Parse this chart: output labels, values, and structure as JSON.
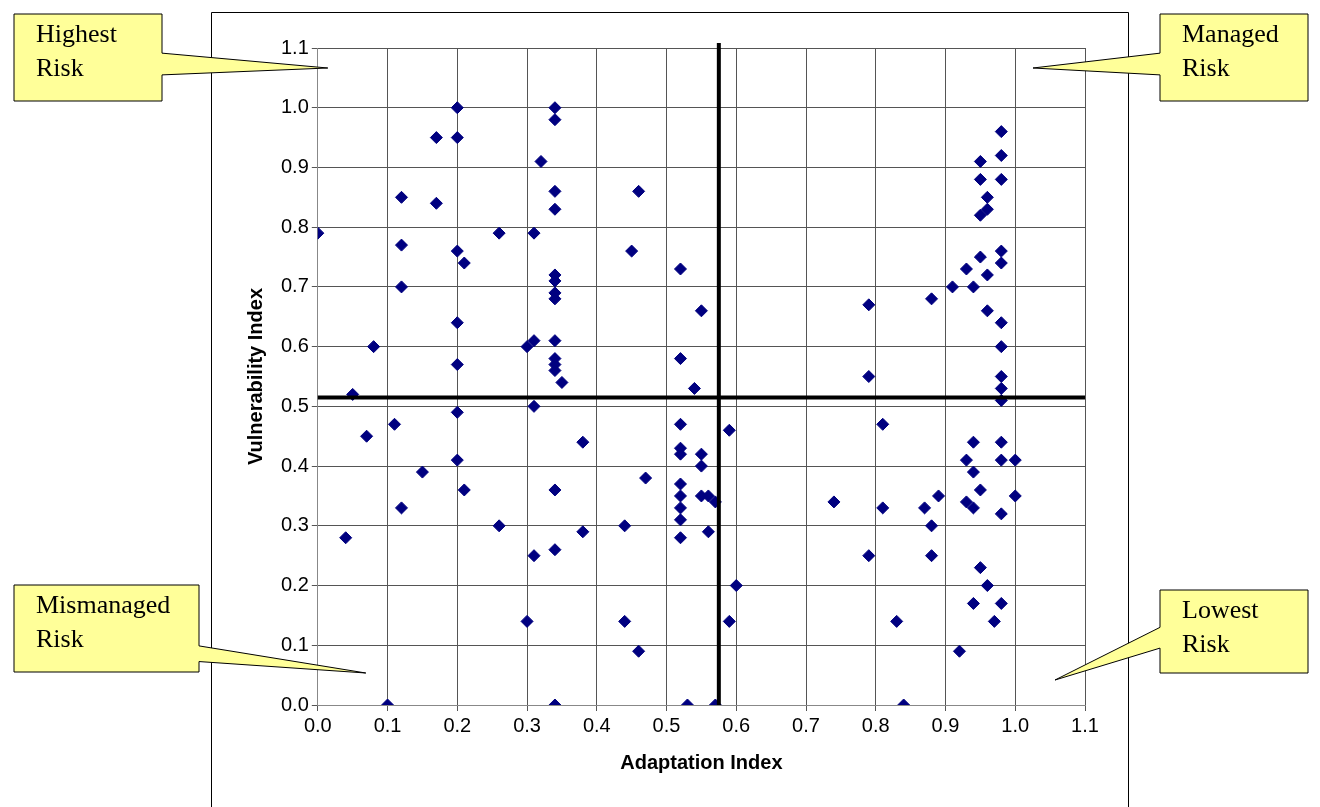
{
  "chart_data": {
    "type": "scatter",
    "xlabel": "Adaptation Index",
    "ylabel": "Vulnerability Index",
    "marker": "diamond",
    "grid": true,
    "legend": false,
    "xlim": [
      0,
      1.1
    ],
    "ylim": [
      0,
      1.1
    ],
    "xticks": [
      {
        "value": 0,
        "label": "0.0"
      },
      {
        "value": 0.1,
        "label": "0.1"
      },
      {
        "value": 0.2,
        "label": "0.2"
      },
      {
        "value": 0.3,
        "label": "0.3"
      },
      {
        "value": 0.4,
        "label": "0.4"
      },
      {
        "value": 0.5,
        "label": "0.5"
      },
      {
        "value": 0.6,
        "label": "0.6"
      },
      {
        "value": 0.7,
        "label": "0.7"
      },
      {
        "value": 0.8,
        "label": "0.8"
      },
      {
        "value": 0.9,
        "label": "0.9"
      },
      {
        "value": 1,
        "label": "1.0"
      },
      {
        "value": 1.1,
        "label": "1.1"
      }
    ],
    "yticks": [
      {
        "value": 0,
        "label": "0.0"
      },
      {
        "value": 0.1,
        "label": "0.1"
      },
      {
        "value": 0.2,
        "label": "0.2"
      },
      {
        "value": 0.3,
        "label": "0.3"
      },
      {
        "value": 0.4,
        "label": "0.4"
      },
      {
        "value": 0.5,
        "label": "0.5"
      },
      {
        "value": 0.6,
        "label": "0.6"
      },
      {
        "value": 0.7,
        "label": "0.7"
      },
      {
        "value": 0.8,
        "label": "0.8"
      },
      {
        "value": 0.9,
        "label": "0.9"
      },
      {
        "value": 1,
        "label": "1.0"
      },
      {
        "value": 1.1,
        "label": "1.1"
      }
    ],
    "ref_lines": [
      {
        "axis": "y",
        "value": 0.515,
        "color": "#000000"
      },
      {
        "axis": "x",
        "value": 0.575,
        "color": "#000000"
      }
    ],
    "annotations": [
      "Highest Risk",
      "Managed Risk",
      "Mismanaged Risk",
      "Lowest Risk"
    ],
    "series": [
      {
        "color": "#000080",
        "x": [
          0.2,
          0.34,
          0.34,
          0.17,
          0.2,
          0.32,
          0.34,
          0.46,
          0.12,
          0.17,
          0.34,
          0.0,
          0.26,
          0.31,
          0.12,
          0.2,
          0.45,
          0.21,
          0.52,
          0.34,
          0.34,
          0.34,
          0.34,
          0.12,
          0.55,
          0.2,
          0.08,
          0.3,
          0.31,
          0.34,
          0.2,
          0.52,
          0.34,
          0.34,
          0.34,
          0.35,
          0.05,
          0.54,
          0.2,
          0.31,
          0.11,
          0.07,
          0.52,
          0.38,
          0.52,
          0.52,
          0.2,
          0.15,
          0.21,
          0.34,
          0.47,
          0.52,
          0.52,
          0.52,
          0.52,
          0.52,
          0.12,
          0.26,
          0.44,
          0.38,
          0.04,
          0.34,
          0.31,
          0.3,
          0.44,
          0.46,
          0.1,
          0.34,
          0.53,
          0.98,
          0.98,
          0.95,
          0.95,
          0.98,
          0.96,
          0.96,
          0.95,
          0.95,
          0.98,
          0.98,
          0.93,
          0.96,
          0.91,
          0.94,
          0.88,
          0.79,
          0.96,
          0.98,
          0.98,
          0.79,
          0.98,
          0.98,
          0.98,
          0.59,
          0.81,
          0.55,
          0.55,
          0.55,
          0.56,
          0.57,
          0.56,
          0.74,
          0.81,
          0.87,
          0.89,
          0.88,
          0.79,
          0.88,
          0.94,
          0.98,
          0.98,
          1.0,
          0.93,
          0.94,
          0.95,
          0.93,
          0.94,
          0.98,
          1.0,
          0.95,
          0.96,
          0.94,
          0.98,
          0.6,
          0.59,
          0.83,
          0.97,
          0.92,
          0.57,
          0.84
        ],
        "values": [
          1.0,
          1.0,
          0.98,
          0.95,
          0.95,
          0.91,
          0.86,
          0.86,
          0.85,
          0.84,
          0.83,
          0.79,
          0.79,
          0.79,
          0.77,
          0.76,
          0.76,
          0.74,
          0.73,
          0.72,
          0.71,
          0.69,
          0.68,
          0.7,
          0.66,
          0.64,
          0.6,
          0.6,
          0.61,
          0.61,
          0.57,
          0.58,
          0.58,
          0.57,
          0.56,
          0.54,
          0.52,
          0.53,
          0.49,
          0.5,
          0.47,
          0.45,
          0.47,
          0.44,
          0.43,
          0.42,
          0.41,
          0.39,
          0.36,
          0.36,
          0.38,
          0.37,
          0.35,
          0.33,
          0.31,
          0.28,
          0.33,
          0.3,
          0.3,
          0.29,
          0.28,
          0.26,
          0.25,
          0.14,
          0.14,
          0.09,
          0.0,
          0.0,
          0.0,
          0.96,
          0.92,
          0.91,
          0.88,
          0.88,
          0.85,
          0.83,
          0.82,
          0.75,
          0.76,
          0.74,
          0.73,
          0.72,
          0.7,
          0.7,
          0.68,
          0.67,
          0.66,
          0.64,
          0.6,
          0.55,
          0.55,
          0.53,
          0.51,
          0.46,
          0.47,
          0.42,
          0.4,
          0.35,
          0.35,
          0.34,
          0.29,
          0.34,
          0.33,
          0.33,
          0.35,
          0.3,
          0.25,
          0.25,
          0.44,
          0.44,
          0.41,
          0.41,
          0.41,
          0.39,
          0.36,
          0.34,
          0.33,
          0.32,
          0.35,
          0.23,
          0.2,
          0.17,
          0.17,
          0.2,
          0.14,
          0.14,
          0.14,
          0.09,
          0.0,
          0.0
        ]
      }
    ]
  }
}
